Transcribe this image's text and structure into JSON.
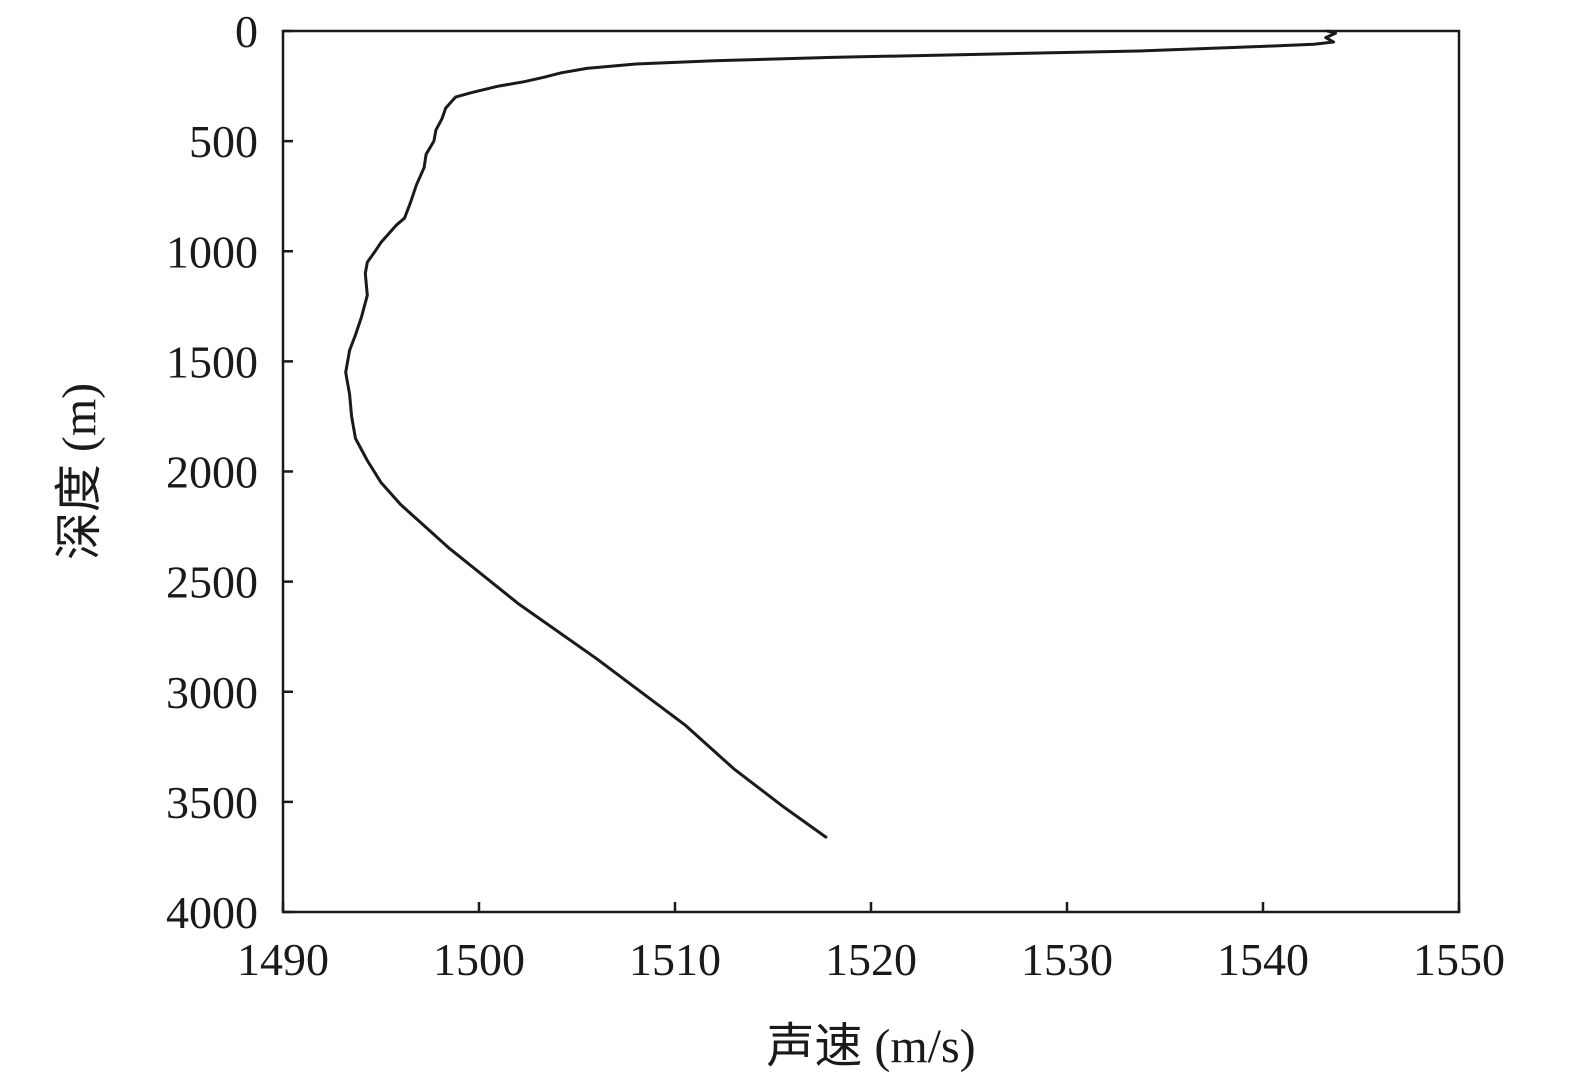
{
  "chart_data": {
    "type": "line",
    "title": "",
    "xlabel": "声速 (m/s)",
    "ylabel": "深度 (m)",
    "xlim": [
      1490,
      1550
    ],
    "ylim": [
      0,
      4000
    ],
    "y_inverted": true,
    "x_ticks": [
      1490,
      1500,
      1510,
      1520,
      1530,
      1540,
      1550
    ],
    "y_ticks": [
      0,
      500,
      1000,
      1500,
      2000,
      2500,
      3000,
      3500,
      4000
    ],
    "grid": false,
    "legend": "none",
    "line_color": "#1a1a1a",
    "series": [
      {
        "x": [
          1543.3,
          1543.7,
          1543.2,
          1543.6,
          1542.6,
          1540.0,
          1534.0,
          1526.0,
          1518.0,
          1512.0,
          1508.0,
          1505.5,
          1504.2,
          1503.3,
          1502.3,
          1501.0,
          1499.6,
          1498.8,
          1498.3,
          1498.1,
          1497.8,
          1497.7,
          1497.3,
          1497.2,
          1496.8,
          1496.5,
          1496.2,
          1495.8,
          1495.4,
          1495.0,
          1494.7,
          1494.3,
          1494.2,
          1494.3,
          1494.0,
          1493.7,
          1493.4,
          1493.2,
          1493.4,
          1493.5,
          1493.7,
          1494.0,
          1494.3,
          1495.0,
          1496.0,
          1498.5,
          1502.0,
          1506.0,
          1510.5,
          1513.0,
          1515.5,
          1517.7
        ],
        "y": [
          0,
          10,
          30,
          50,
          60,
          70,
          90,
          105,
          120,
          135,
          150,
          170,
          190,
          210,
          230,
          250,
          280,
          300,
          350,
          400,
          450,
          500,
          560,
          620,
          700,
          780,
          850,
          880,
          920,
          960,
          1000,
          1050,
          1100,
          1200,
          1300,
          1380,
          1450,
          1550,
          1650,
          1750,
          1850,
          1900,
          1950,
          2050,
          2150,
          2350,
          2600,
          2850,
          3150,
          3350,
          3520,
          3660
        ]
      }
    ]
  }
}
